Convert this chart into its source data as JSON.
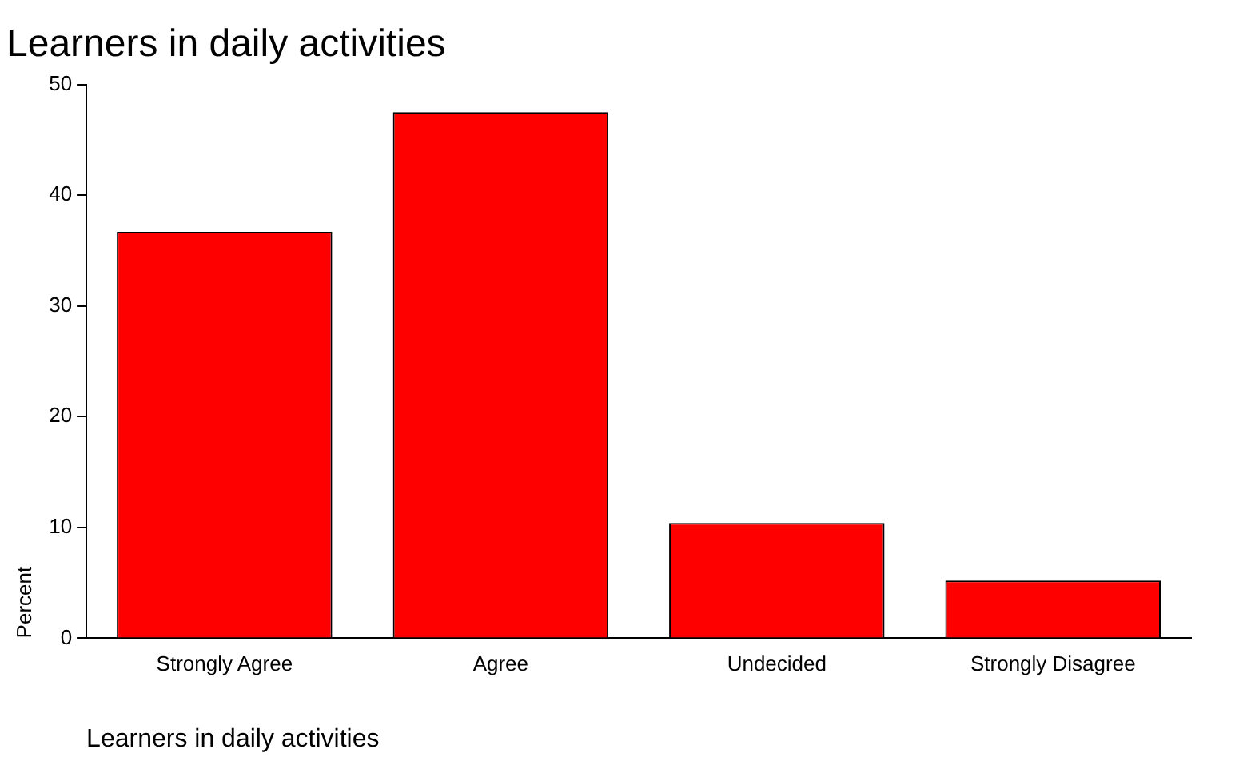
{
  "chart_data": {
    "type": "bar",
    "title": "Learners in daily activities",
    "xlabel": "Learners in daily activities",
    "ylabel": "Percent",
    "categories": [
      "Strongly Agree",
      "Agree",
      "Undecided",
      "Strongly Disagree"
    ],
    "values": [
      36.7,
      47.5,
      10.4,
      5.2
    ],
    "color": "#ff0000",
    "ylim": [
      0,
      50
    ],
    "yticks": [
      0,
      10,
      20,
      30,
      40,
      50
    ],
    "grid": false,
    "legend": false
  }
}
